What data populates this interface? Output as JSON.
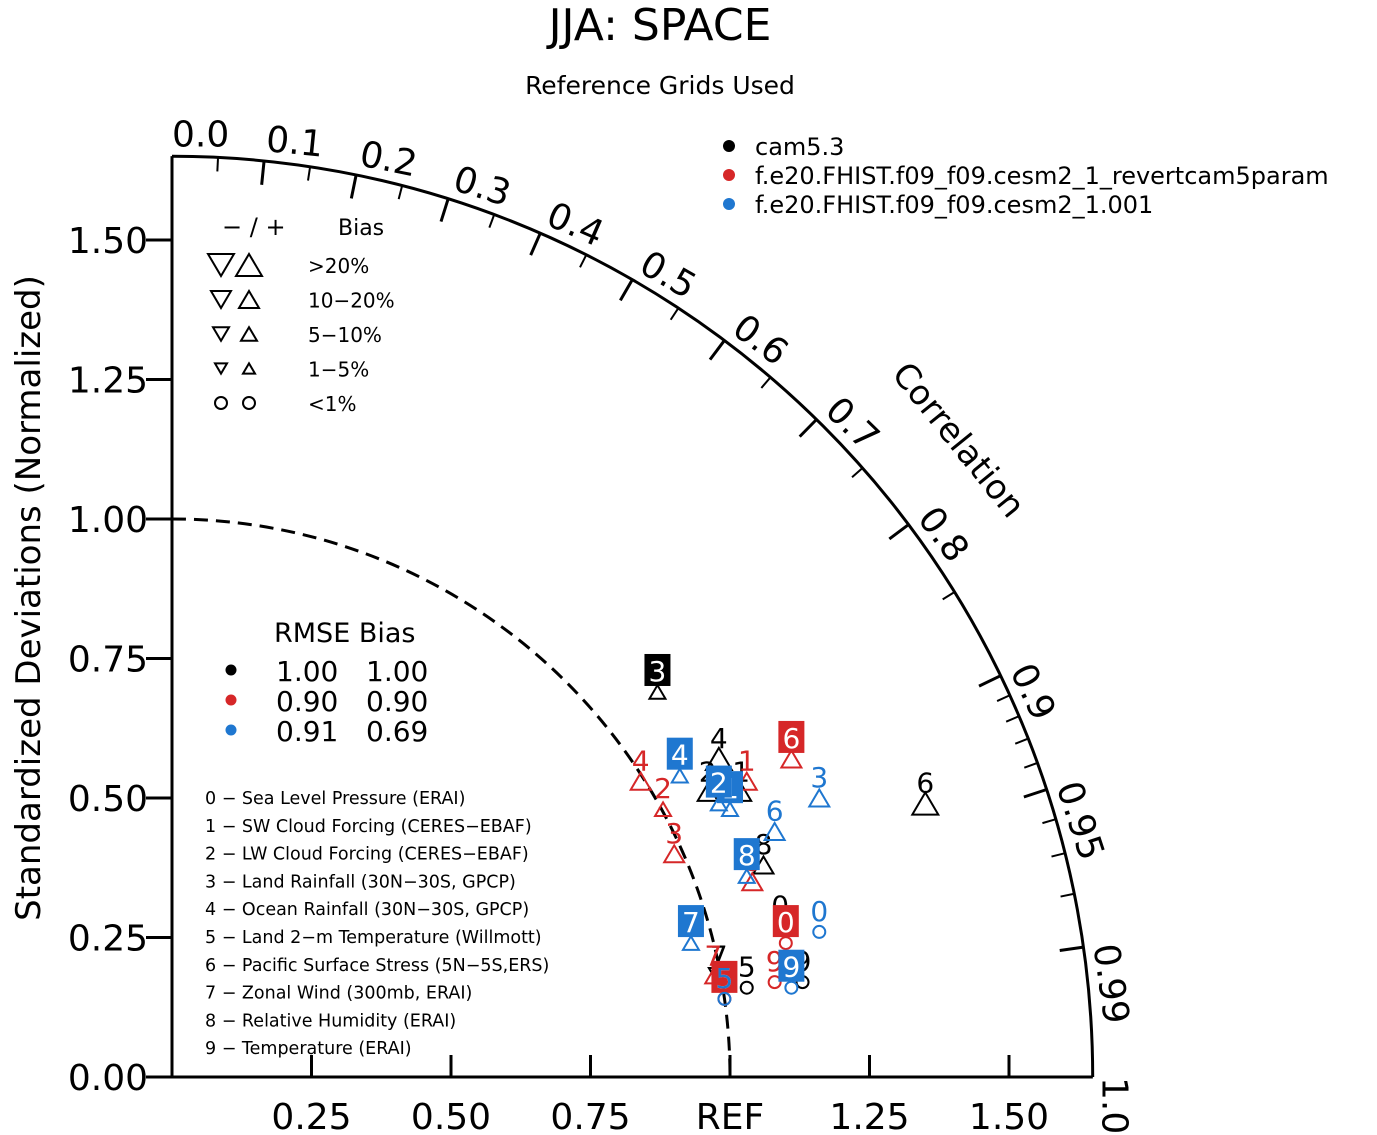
{
  "chart_data": {
    "type": "scatter",
    "subtype": "taylor-diagram",
    "title": "JJA: SPACE",
    "subtitle": "Reference Grids Used",
    "ylabel": "Standardized Deviations (Normalized)",
    "corr_label": "Correlation",
    "ref_label": "REF",
    "xlim": [
      0,
      1.65
    ],
    "ylim": [
      0,
      1.65
    ],
    "y_ticks": [
      {
        "v": 0.0,
        "label": "0.00"
      },
      {
        "v": 0.25,
        "label": "0.25"
      },
      {
        "v": 0.5,
        "label": "0.50"
      },
      {
        "v": 0.75,
        "label": "0.75"
      },
      {
        "v": 1.0,
        "label": "1.00"
      },
      {
        "v": 1.25,
        "label": "1.25"
      },
      {
        "v": 1.5,
        "label": "1.50"
      }
    ],
    "x_ticks": [
      {
        "v": 0.25,
        "label": "0.25"
      },
      {
        "v": 0.5,
        "label": "0.50"
      },
      {
        "v": 0.75,
        "label": "0.75"
      },
      {
        "v": 1.0,
        "label": "REF"
      },
      {
        "v": 1.25,
        "label": "1.25"
      },
      {
        "v": 1.5,
        "label": "1.50"
      }
    ],
    "corr_ticks_labeled": [
      {
        "v": 0.0,
        "label": "0.0"
      },
      {
        "v": 0.1,
        "label": "0.1"
      },
      {
        "v": 0.2,
        "label": "0.2"
      },
      {
        "v": 0.3,
        "label": "0.3"
      },
      {
        "v": 0.4,
        "label": "0.4"
      },
      {
        "v": 0.5,
        "label": "0.5"
      },
      {
        "v": 0.6,
        "label": "0.6"
      },
      {
        "v": 0.7,
        "label": "0.7"
      },
      {
        "v": 0.8,
        "label": "0.8"
      },
      {
        "v": 0.9,
        "label": "0.9"
      },
      {
        "v": 0.95,
        "label": "0.95"
      },
      {
        "v": 0.99,
        "label": "0.99"
      },
      {
        "v": 1.0,
        "label": "1.0"
      }
    ],
    "corr_ticks_minor": [
      0.05,
      0.15,
      0.25,
      0.35,
      0.45,
      0.55,
      0.65,
      0.75,
      0.85,
      0.91,
      0.92,
      0.93,
      0.94,
      0.96,
      0.97,
      0.98
    ],
    "series": [
      {
        "name": "cam5.3",
        "color": "#000000",
        "rmse": "1.00",
        "bias": "1.00",
        "points": [
          {
            "id": "0",
            "x": 1.09,
            "y": 0.27,
            "marker": "circle",
            "dir": "up",
            "size": 1,
            "label_style": "plain"
          },
          {
            "id": "1",
            "x": 1.02,
            "y": 0.51,
            "marker": "triangle",
            "dir": "up",
            "size": 2,
            "label_style": "plain"
          },
          {
            "id": "2",
            "x": 0.96,
            "y": 0.51,
            "marker": "triangle",
            "dir": "up",
            "size": 2,
            "label_style": "plain"
          },
          {
            "id": "3",
            "x": 0.87,
            "y": 0.69,
            "marker": "triangle",
            "dir": "up",
            "size": 1,
            "label_style": "box"
          },
          {
            "id": "4",
            "x": 0.98,
            "y": 0.57,
            "marker": "triangle",
            "dir": "up",
            "size": 3,
            "label_style": "plain"
          },
          {
            "id": "5",
            "x": 1.03,
            "y": 0.16,
            "marker": "circle",
            "dir": "up",
            "size": 1,
            "label_style": "plain"
          },
          {
            "id": "6",
            "x": 1.35,
            "y": 0.49,
            "marker": "triangle",
            "dir": "up",
            "size": 3,
            "label_style": "plain"
          },
          {
            "id": "7",
            "x": 0.98,
            "y": 0.18,
            "marker": "triangle",
            "dir": "down",
            "size": 2,
            "label_style": "plain"
          },
          {
            "id": "8",
            "x": 1.06,
            "y": 0.38,
            "marker": "triangle",
            "dir": "up",
            "size": 2,
            "label_style": "plain"
          },
          {
            "id": "9",
            "x": 1.13,
            "y": 0.17,
            "marker": "circle",
            "dir": "up",
            "size": 1,
            "label_style": "plain"
          }
        ]
      },
      {
        "name": "f.e20.FHIST.f09_f09.cesm2_1_revertcam5param",
        "color": "#d62728",
        "rmse": "0.90",
        "bias": "0.90",
        "points": [
          {
            "id": "0",
            "x": 1.1,
            "y": 0.24,
            "marker": "circle",
            "dir": "up",
            "size": 1,
            "label_style": "box"
          },
          {
            "id": "1",
            "x": 1.03,
            "y": 0.53,
            "marker": "triangle",
            "dir": "up",
            "size": 2,
            "label_style": "plain"
          },
          {
            "id": "2",
            "x": 0.88,
            "y": 0.48,
            "marker": "triangle",
            "dir": "up",
            "size": 1,
            "label_style": "plain"
          },
          {
            "id": "3",
            "x": 0.9,
            "y": 0.4,
            "marker": "triangle",
            "dir": "up",
            "size": 2,
            "label_style": "plain"
          },
          {
            "id": "4",
            "x": 0.84,
            "y": 0.53,
            "marker": "triangle",
            "dir": "up",
            "size": 2,
            "label_style": "plain"
          },
          {
            "id": "5",
            "x": 0.99,
            "y": 0.14,
            "marker": "circle",
            "dir": "up",
            "size": 1,
            "label_style": "box"
          },
          {
            "id": "6",
            "x": 1.11,
            "y": 0.57,
            "marker": "triangle",
            "dir": "up",
            "size": 2,
            "label_style": "box"
          },
          {
            "id": "7",
            "x": 0.97,
            "y": 0.18,
            "marker": "triangle",
            "dir": "up",
            "size": 1,
            "label_style": "plain"
          },
          {
            "id": "8",
            "x": 1.04,
            "y": 0.35,
            "marker": "triangle",
            "dir": "up",
            "size": 2,
            "label_style": "plain"
          },
          {
            "id": "9",
            "x": 1.08,
            "y": 0.17,
            "marker": "circle",
            "dir": "up",
            "size": 1,
            "label_style": "plain"
          }
        ]
      },
      {
        "name": "f.e20.FHIST.f09_f09.cesm2_1.001",
        "color": "#1f77d0",
        "rmse": "0.91",
        "bias": "0.69",
        "points": [
          {
            "id": "0",
            "x": 1.16,
            "y": 0.26,
            "marker": "circle",
            "dir": "up",
            "size": 1,
            "label_style": "plain"
          },
          {
            "id": "1",
            "x": 1.0,
            "y": 0.48,
            "marker": "triangle",
            "dir": "up",
            "size": 1,
            "label_style": "box"
          },
          {
            "id": "2",
            "x": 0.98,
            "y": 0.49,
            "marker": "triangle",
            "dir": "up",
            "size": 1,
            "label_style": "box"
          },
          {
            "id": "3",
            "x": 1.16,
            "y": 0.5,
            "marker": "triangle",
            "dir": "up",
            "size": 2,
            "label_style": "plain"
          },
          {
            "id": "4",
            "x": 0.91,
            "y": 0.54,
            "marker": "triangle",
            "dir": "up",
            "size": 1,
            "label_style": "box"
          },
          {
            "id": "5",
            "x": 0.99,
            "y": 0.14,
            "marker": "circle",
            "dir": "up",
            "size": 1,
            "label_style": "plain"
          },
          {
            "id": "6",
            "x": 1.08,
            "y": 0.44,
            "marker": "triangle",
            "dir": "up",
            "size": 2,
            "label_style": "plain"
          },
          {
            "id": "7",
            "x": 0.93,
            "y": 0.24,
            "marker": "triangle",
            "dir": "up",
            "size": 1,
            "label_style": "box"
          },
          {
            "id": "8",
            "x": 1.03,
            "y": 0.36,
            "marker": "triangle",
            "dir": "up",
            "size": 1,
            "label_style": "box"
          },
          {
            "id": "9",
            "x": 1.11,
            "y": 0.16,
            "marker": "circle",
            "dir": "up",
            "size": 1,
            "label_style": "box"
          }
        ]
      }
    ],
    "marker_legend": {
      "header_symbols": "−  /  +",
      "header_label": "Bias",
      "rows": [
        {
          "label": ">20%",
          "marker": "triangle",
          "size": 3
        },
        {
          "label": "10−20%",
          "marker": "triangle",
          "size": 2
        },
        {
          "label": "5−10%",
          "marker": "triangle",
          "size": 1
        },
        {
          "label": "1−5%",
          "marker": "triangle",
          "size": 0
        },
        {
          "label": "<1%",
          "marker": "circle",
          "size": 1
        }
      ]
    },
    "stats_legend": {
      "header": "RMSE Bias"
    },
    "variable_list": [
      "0 − Sea Level Pressure (ERAI)",
      "1 − SW Cloud Forcing (CERES−EBAF)",
      "2 − LW Cloud Forcing (CERES−EBAF)",
      "3 − Land Rainfall (30N−30S, GPCP)",
      "4 − Ocean Rainfall (30N−30S, GPCP)",
      "5 − Land 2−m Temperature (Willmott)",
      "6 − Pacific Surface Stress (5N−5S,ERS)",
      "7 − Zonal Wind (300mb, ERAI)",
      "8 − Relative Humidity (ERAI)",
      "9 − Temperature (ERAI)"
    ]
  }
}
